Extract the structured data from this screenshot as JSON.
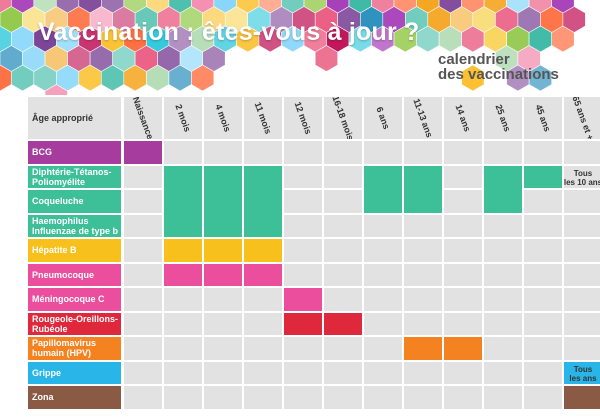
{
  "banner": {
    "title": "Vaccination : êtes-vous à jour ?",
    "subtitle_line1": "calendrier",
    "subtitle_line2": "des vaccinations",
    "palette": [
      "#e94e77",
      "#f5a623",
      "#f7d046",
      "#8cc63f",
      "#3bb9a5",
      "#2a8fbd",
      "#7b4397",
      "#c2185b",
      "#ff7043",
      "#26c6da",
      "#9c27b0",
      "#fbc02d",
      "#f48fb1",
      "#81d4fa",
      "#a5d6a7"
    ]
  },
  "schedule": {
    "age_header": "Âge approprié",
    "columns": [
      "Naissance",
      "2 mois",
      "4 mois",
      "11 mois",
      "12 mois",
      "16-18 mois",
      "6 ans",
      "11-13 ans",
      "14 ans",
      "25 ans",
      "45 ans",
      "65 ans et +"
    ],
    "rows": [
      {
        "lines": [
          "BCG"
        ],
        "color": "#a63d9e"
      },
      {
        "lines": [
          "Diphtérie-Tétanos-",
          "Poliomyélite"
        ],
        "color": "#3dbf98"
      },
      {
        "lines": [
          "Coqueluche"
        ],
        "color": "#3dbf98"
      },
      {
        "lines": [
          "Haemophilus",
          "Influenzae de type b (HIB)"
        ],
        "color": "#3dbf98"
      },
      {
        "lines": [
          "Hépatite B"
        ],
        "color": "#f8c01c"
      },
      {
        "lines": [
          "Pneumocoque"
        ],
        "color": "#ea4e9d"
      },
      {
        "lines": [
          "Méningocoque C"
        ],
        "color": "#ea4e9d"
      },
      {
        "lines": [
          "Rougeole-Oreillons-",
          "Rubéole"
        ],
        "color": "#e0283c"
      },
      {
        "lines": [
          "Papillomavirus",
          "humain (HPV)"
        ],
        "color": "#f58220"
      },
      {
        "lines": [
          "Grippe"
        ],
        "color": "#29b5e8"
      },
      {
        "lines": [
          "Zona"
        ],
        "color": "#8b5a45"
      }
    ],
    "bars": [
      {
        "row": 0,
        "from": 0,
        "to": 0
      },
      {
        "row": 1,
        "from": 1,
        "to": 3,
        "rowspan": 3
      },
      {
        "row": 1,
        "from": 6,
        "to": 7,
        "rowspan": 2
      },
      {
        "row": 1,
        "from": 9,
        "to": 9,
        "rowspan": 2
      },
      {
        "row": 1,
        "from": 10,
        "to": 10
      },
      {
        "row": 4,
        "from": 1,
        "to": 3
      },
      {
        "row": 5,
        "from": 1,
        "to": 3
      },
      {
        "row": 6,
        "from": 4,
        "to": 4
      },
      {
        "row": 7,
        "from": 4,
        "to": 5
      },
      {
        "row": 8,
        "from": 7,
        "to": 8
      },
      {
        "row": 9,
        "from": 11,
        "to": 11
      },
      {
        "row": 10,
        "from": 11,
        "to": 11
      }
    ],
    "notes": [
      {
        "row": 1,
        "col": 11,
        "lines": [
          "Tous",
          "les 10 ans"
        ]
      },
      {
        "row": 9,
        "col": 11,
        "lines": [
          "Tous",
          "les ans"
        ]
      }
    ]
  }
}
